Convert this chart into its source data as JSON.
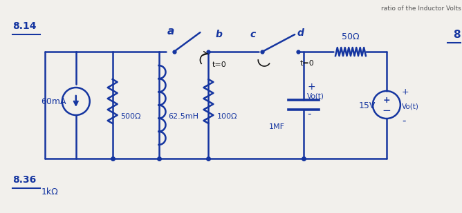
{
  "bg_color": "#f2f0ec",
  "line_color": "#1535a0",
  "text_color": "#1535a0",
  "label_8_14": "8.14",
  "label_8_36": "8.36",
  "label_1kR": "1kΩ",
  "node_a": "a",
  "node_b": "b",
  "node_c": "c",
  "node_d": "d",
  "label_60mA": "60mA",
  "label_500ohm": "500Ω",
  "label_625mH": "62.5mH",
  "label_100ohm": "100Ω",
  "label_1MF": "1MF",
  "label_Volt": "Vo(t)",
  "label_plus": "+",
  "label_minus": "-",
  "label_50ohm": "50Ω",
  "label_15V": "15V",
  "label_Vo2t": "Vo(t)",
  "label_t0_1": "t=0",
  "label_t0_2": "t=0",
  "top_text": "ratio of the Inductor Volts",
  "right_label": "8"
}
